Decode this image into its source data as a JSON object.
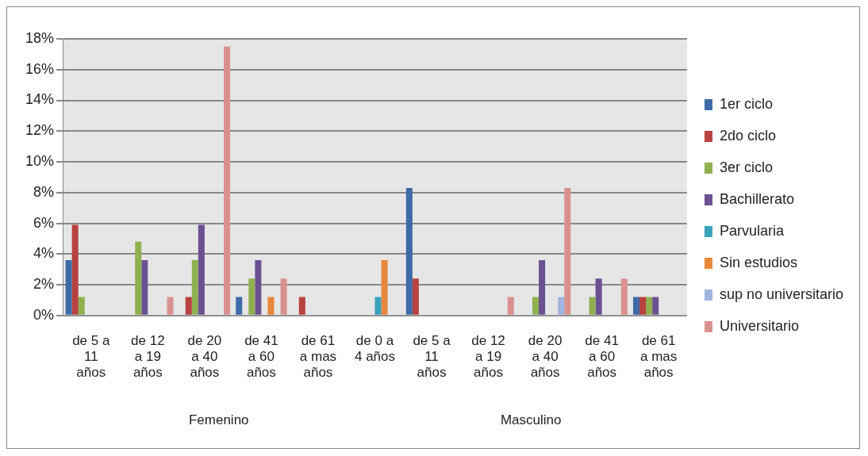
{
  "chart_data": {
    "type": "bar",
    "categories": [
      "de 5 a 11 años",
      "de 12 a 19 años",
      "de 20 a 40 años",
      "de 41 a 60 años",
      "de 61 a mas años",
      "de 0 a 4 años",
      "de 5 a 11 años",
      "de 12 a 19 años",
      "de 20 a 40 años",
      "de 41 a 60 años",
      "de 61 a mas años"
    ],
    "series": [
      {
        "name": "1er ciclo",
        "color": "#3f6aa8",
        "values": [
          3.6,
          0,
          0,
          1.2,
          0,
          0,
          8.3,
          0,
          0,
          0,
          1.2
        ]
      },
      {
        "name": "2do ciclo",
        "color": "#b8423f",
        "values": [
          5.9,
          0,
          1.2,
          0,
          1.2,
          0,
          2.4,
          0,
          0,
          0,
          1.2
        ]
      },
      {
        "name": "3er ciclo",
        "color": "#8fb04f",
        "values": [
          1.2,
          4.8,
          3.6,
          2.4,
          0,
          0,
          0,
          0,
          1.2,
          1.2,
          1.2
        ]
      },
      {
        "name": "Bachillerato",
        "color": "#6b5193",
        "values": [
          0,
          3.6,
          5.9,
          3.6,
          0,
          0,
          0,
          0,
          3.6,
          2.4,
          1.2
        ]
      },
      {
        "name": "Parvularia",
        "color": "#3aa2bb",
        "values": [
          0,
          0,
          0,
          0,
          0,
          1.2,
          0,
          0,
          0,
          0,
          0
        ]
      },
      {
        "name": "Sin estudios",
        "color": "#e8873a",
        "values": [
          0,
          0,
          0,
          1.2,
          0,
          3.6,
          0,
          0,
          0,
          0,
          0
        ]
      },
      {
        "name": "sup no universitario",
        "color": "#9fb4de",
        "values": [
          0,
          0,
          0,
          0,
          0,
          0,
          0,
          0,
          1.2,
          0,
          0
        ]
      },
      {
        "name": "Universitario",
        "color": "#d9918f",
        "values": [
          0,
          1.2,
          17.5,
          2.4,
          0,
          0,
          0,
          1.2,
          8.3,
          2.4,
          0
        ]
      }
    ],
    "ylim": [
      0,
      18
    ],
    "yticks": [
      {
        "value": 0,
        "label": "0%"
      },
      {
        "value": 2,
        "label": "2%"
      },
      {
        "value": 4,
        "label": "4%"
      },
      {
        "value": 6,
        "label": "6%"
      },
      {
        "value": 8,
        "label": "8%"
      },
      {
        "value": 10,
        "label": "10%"
      },
      {
        "value": 12,
        "label": "12%"
      },
      {
        "value": 14,
        "label": "14%"
      },
      {
        "value": 16,
        "label": "16%"
      },
      {
        "value": 18,
        "label": "18%"
      }
    ],
    "grid": "y",
    "legend": "right",
    "annotations": [
      "Femenino",
      "Masculino"
    ]
  }
}
